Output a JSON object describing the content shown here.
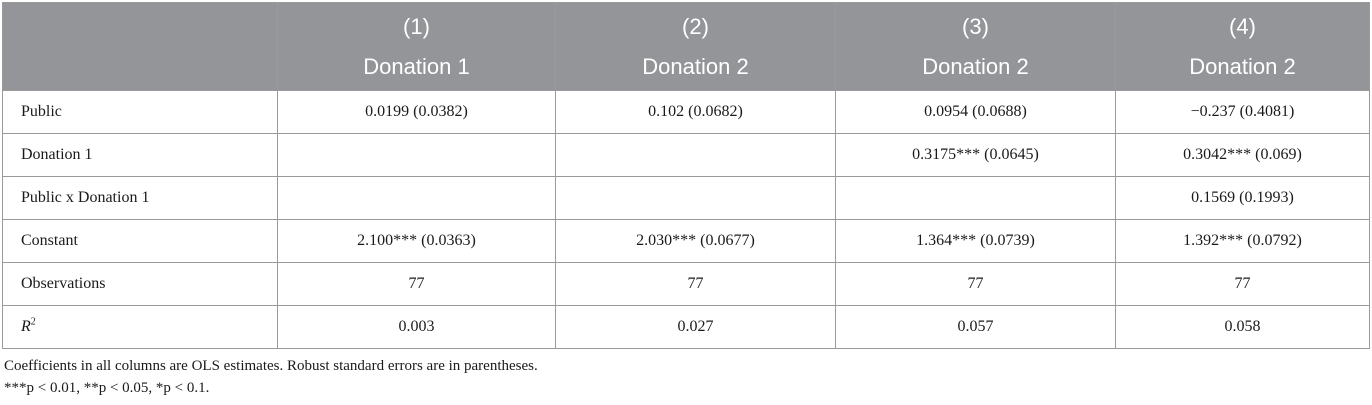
{
  "header": {
    "col1": {
      "num": "(1)",
      "dep": "Donation 1"
    },
    "col2": {
      "num": "(2)",
      "dep": "Donation 2"
    },
    "col3": {
      "num": "(3)",
      "dep": "Donation 2"
    },
    "col4": {
      "num": "(4)",
      "dep": "Donation 2"
    }
  },
  "rows": {
    "public": {
      "label": "Public",
      "c1": "0.0199 (0.0382)",
      "c2": "0.102 (0.0682)",
      "c3": "0.0954 (0.0688)",
      "c4": "−0.237 (0.4081)"
    },
    "donation1": {
      "label": "Donation 1",
      "c1": "",
      "c2": "",
      "c3": "0.3175*** (0.0645)",
      "c4": "0.3042*** (0.069)"
    },
    "interaction": {
      "label": "Public x Donation 1",
      "c1": "",
      "c2": "",
      "c3": "",
      "c4": "0.1569 (0.1993)"
    },
    "constant": {
      "label": "Constant",
      "c1": "2.100*** (0.0363)",
      "c2": "2.030*** (0.0677)",
      "c3": "1.364*** (0.0739)",
      "c4": "1.392*** (0.0792)"
    },
    "observations": {
      "label": "Observations",
      "c1": "77",
      "c2": "77",
      "c3": "77",
      "c4": "77"
    },
    "r2": {
      "label_base": "R",
      "label_sup": "2",
      "c1": "0.003",
      "c2": "0.027",
      "c3": "0.057",
      "c4": "0.058"
    }
  },
  "notes": {
    "line1": "Coefficients in all columns are OLS estimates. Robust standard errors are in parentheses.",
    "line2": "***p < 0.01, **p < 0.05, *p < 0.1."
  }
}
